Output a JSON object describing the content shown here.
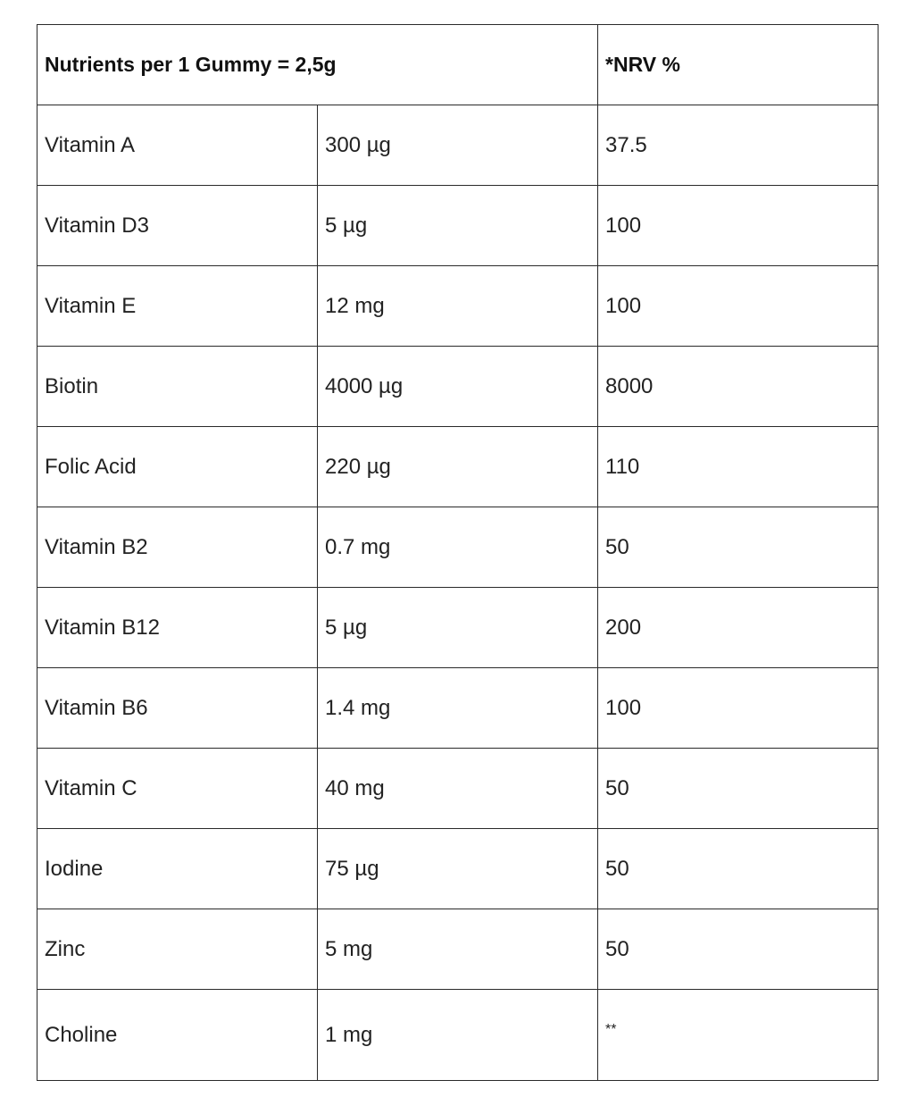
{
  "table": {
    "header": {
      "title": "Nutrients per 1 Gummy = 2,5g",
      "nrv": "*NRV %"
    },
    "rows": [
      {
        "nutrient": "Vitamin A",
        "amount": "300 µg",
        "nrv": "37.5"
      },
      {
        "nutrient": "Vitamin D3",
        "amount": "5 µg",
        "nrv": "100"
      },
      {
        "nutrient": "Vitamin E",
        "amount": "12 mg",
        "nrv": "100"
      },
      {
        "nutrient": "Biotin",
        "amount": "4000 µg",
        "nrv": "8000"
      },
      {
        "nutrient": "Folic Acid",
        "amount": "220 µg",
        "nrv": "110"
      },
      {
        "nutrient": "Vitamin B2",
        "amount": "0.7 mg",
        "nrv": "50"
      },
      {
        "nutrient": "Vitamin B12",
        "amount": "5 µg",
        "nrv": "200"
      },
      {
        "nutrient": "Vitamin B6",
        "amount": "1.4 mg",
        "nrv": "100"
      },
      {
        "nutrient": "Vitamin C",
        "amount": "40 mg",
        "nrv": "50"
      },
      {
        "nutrient": "Iodine",
        "amount": "75 µg",
        "nrv": "50"
      },
      {
        "nutrient": "Zinc",
        "amount": "5 mg",
        "nrv": "50"
      },
      {
        "nutrient": "Choline",
        "amount": "1 mg",
        "nrv": "**"
      }
    ]
  }
}
